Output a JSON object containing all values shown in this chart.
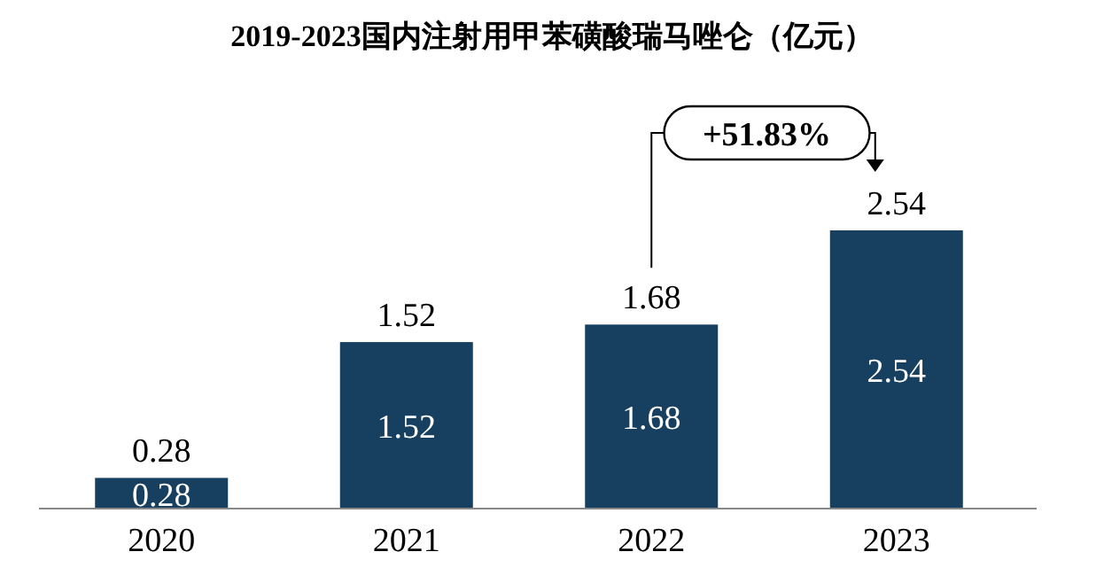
{
  "chart_data": {
    "type": "bar",
    "title": "2019-2023国内注射用甲苯磺酸瑞马唑仑（亿元）",
    "categories": [
      "2020",
      "2021",
      "2022",
      "2023"
    ],
    "values": [
      0.28,
      1.52,
      1.68,
      2.54
    ],
    "color": "#173f5f",
    "data_labels": true,
    "annotations": [
      "+51.83%",
      "0.28",
      "1.52",
      "1.68",
      "2.54"
    ]
  }
}
